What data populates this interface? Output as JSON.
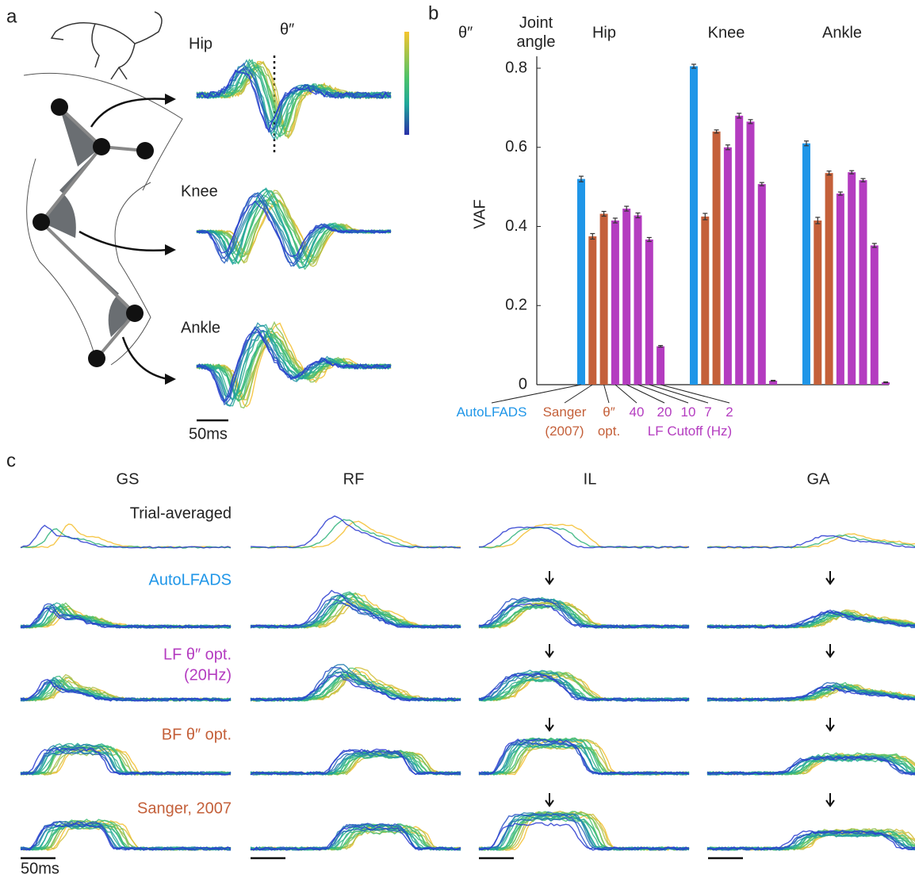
{
  "chart_data": {
    "type": "bar",
    "panel_label": "b",
    "title": "θ″",
    "corner_label": "Joint angle",
    "ylabel": "VAF",
    "categories": [
      "Hip",
      "Knee",
      "Ankle"
    ],
    "series": [
      {
        "name": "AutoLFADS",
        "color": "#1f96e8",
        "values": [
          0.52,
          0.805,
          0.61
        ],
        "errors": [
          0.007,
          0.005,
          0.006
        ]
      },
      {
        "name": "Sanger (2007)",
        "color": "#c4603a",
        "values": [
          0.375,
          0.425,
          0.415
        ],
        "errors": [
          0.007,
          0.008,
          0.008
        ]
      },
      {
        "name": "θ″ opt.",
        "color": "#c4603a",
        "values": [
          0.432,
          0.64,
          0.535
        ],
        "errors": [
          0.006,
          0.004,
          0.005
        ]
      },
      {
        "name": "40",
        "color": "#b43cc0",
        "values": [
          0.415,
          0.6,
          0.483
        ],
        "errors": [
          0.006,
          0.006,
          0.004
        ]
      },
      {
        "name": "20",
        "color": "#b43cc0",
        "values": [
          0.445,
          0.68,
          0.537
        ],
        "errors": [
          0.006,
          0.006,
          0.004
        ]
      },
      {
        "name": "10",
        "color": "#b43cc0",
        "values": [
          0.428,
          0.665,
          0.517
        ],
        "errors": [
          0.006,
          0.005,
          0.004
        ]
      },
      {
        "name": "7",
        "color": "#b43cc0",
        "values": [
          0.367,
          0.507,
          0.352
        ],
        "errors": [
          0.005,
          0.004,
          0.005
        ]
      },
      {
        "name": "2",
        "color": "#b43cc0",
        "values": [
          0.097,
          0.01,
          0.006
        ],
        "errors": [
          0.002,
          0.001,
          0.001
        ]
      }
    ],
    "legend_note": "LF Cutoff (Hz)",
    "ylim": [
      0,
      0.83
    ],
    "yticks": [
      0,
      0.2,
      0.4,
      0.6,
      0.8
    ]
  },
  "panel_a": {
    "label": "a",
    "title": "θ″",
    "joints": [
      "Hip",
      "Knee",
      "Ankle"
    ],
    "scale_bar": "50ms"
  },
  "panel_c": {
    "label": "c",
    "muscles": [
      "GS",
      "RF",
      "IL",
      "GA"
    ],
    "rows": [
      "Trial-averaged",
      "AutoLFADS",
      "LF θ″ opt.",
      "BF θ″ opt.",
      "Sanger, 2007"
    ],
    "row_note": "(20Hz)",
    "scale_bar": "50ms"
  }
}
